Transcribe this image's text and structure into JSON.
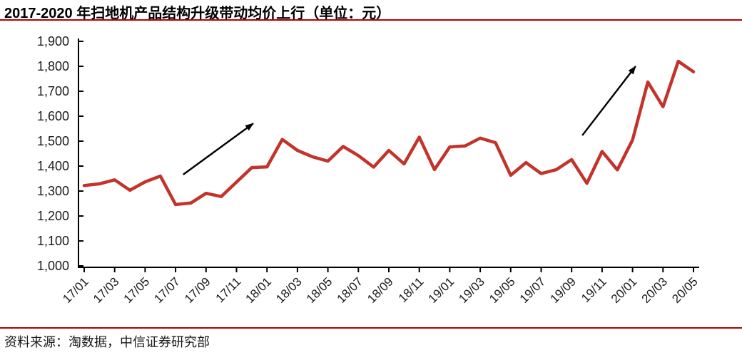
{
  "title": "2017-2020 年扫地机产品结构升级带动均价上行（单位：元）",
  "source": "资料来源：淘数据，中信证券研究部",
  "colors": {
    "rule_red": "#b30000",
    "line_red": "#c2342b",
    "axis": "#000000",
    "arrow": "#000000",
    "text": "#1a1a1a"
  },
  "chart_data": {
    "type": "line",
    "title": "2017-2020 年扫地机产品结构升级带动均价上行（单位：元）",
    "unit": "元",
    "x": [
      "17/01",
      "17/02",
      "17/03",
      "17/04",
      "17/05",
      "17/06",
      "17/07",
      "17/08",
      "17/09",
      "17/10",
      "17/11",
      "17/12",
      "18/01",
      "18/02",
      "18/03",
      "18/04",
      "18/05",
      "18/06",
      "18/07",
      "18/08",
      "18/09",
      "18/10",
      "18/11",
      "18/12",
      "19/01",
      "19/02",
      "19/03",
      "19/04",
      "19/05",
      "19/06",
      "19/07",
      "19/08",
      "19/09",
      "19/10",
      "19/11",
      "19/12",
      "20/01",
      "20/02",
      "20/03",
      "20/04",
      "20/05"
    ],
    "values": [
      1322,
      1329,
      1345,
      1303,
      1337,
      1360,
      1246,
      1252,
      1291,
      1278,
      1336,
      1394,
      1397,
      1507,
      1463,
      1437,
      1420,
      1479,
      1442,
      1396,
      1463,
      1409,
      1516,
      1386,
      1477,
      1481,
      1512,
      1494,
      1363,
      1414,
      1370,
      1386,
      1426,
      1331,
      1459,
      1385,
      1505,
      1737,
      1638,
      1820,
      1778
    ],
    "x_tick_labels": [
      "17/01",
      "17/03",
      "17/05",
      "17/07",
      "17/09",
      "17/11",
      "18/01",
      "18/03",
      "18/05",
      "18/07",
      "18/09",
      "18/11",
      "19/01",
      "19/03",
      "19/05",
      "19/07",
      "19/09",
      "19/11",
      "20/01",
      "20/03",
      "20/05"
    ],
    "y_ticks": [
      1000,
      1100,
      1200,
      1300,
      1400,
      1500,
      1600,
      1700,
      1800,
      1900
    ],
    "y_tick_labels": [
      "1,000",
      "1,100",
      "1,200",
      "1,300",
      "1,400",
      "1,500",
      "1,600",
      "1,700",
      "1,800",
      "1,900"
    ],
    "ylim": [
      1000,
      1900
    ],
    "grid": false,
    "legend": "none",
    "annotations": [
      {
        "type": "arrow",
        "from_month_index": 6.5,
        "from_value": 1366,
        "to_month_index": 11.1,
        "to_value": 1571
      },
      {
        "type": "arrow",
        "from_month_index": 32.7,
        "from_value": 1523,
        "to_month_index": 36.2,
        "to_value": 1800
      }
    ]
  }
}
